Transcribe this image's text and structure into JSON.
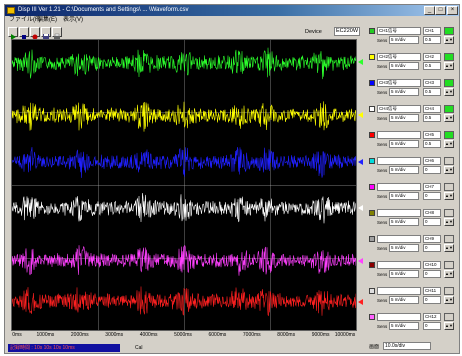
{
  "window": {
    "title": "Disp III Ver 1.21 - C:\\Documents and Settings\\ ... \\Waveform.csv",
    "minimize": "_",
    "maximize": "□",
    "close": "×"
  },
  "menu": [
    "ファイル(F)",
    "編集(E)",
    "表示(V)"
  ],
  "device": {
    "label": "Device",
    "value": "EC220W"
  },
  "x_axis": {
    "ticks": [
      "0ms",
      "1000ms",
      "2000ms",
      "3000ms",
      "4000ms",
      "5000ms",
      "6000ms",
      "7000ms",
      "8000ms",
      "9000ms",
      "10000ms"
    ]
  },
  "status": {
    "left": "記録時間 : 10s 10s 10s 10ms",
    "mid": "Cal"
  },
  "channels": [
    {
      "name": "CH1信号",
      "num": "CH1",
      "sens_label": "Sens",
      "sens": "5 m/div",
      "offset": "0.5",
      "color": "#22cc22",
      "indicator": "#22dd22",
      "trace": "#2cff2c"
    },
    {
      "name": "CH2信号",
      "num": "CH2",
      "sens_label": "Sens",
      "sens": "5 m/div",
      "offset": "0.5",
      "color": "#ffff00",
      "indicator": "#22dd22",
      "trace": "#ffff00"
    },
    {
      "name": "CH3信号",
      "num": "CH3",
      "sens_label": "Sens",
      "sens": "5 m/div",
      "offset": "0.5",
      "color": "#0000ff",
      "indicator": "#22dd22",
      "trace": "#2020ff"
    },
    {
      "name": "CH4信号",
      "num": "CH4",
      "sens_label": "Sens",
      "sens": "5 m/div",
      "offset": "0.5",
      "color": "#ffffff",
      "indicator": "#22dd22",
      "trace": "#ffffff"
    },
    {
      "name": "",
      "num": "CH5",
      "sens_label": "Sens",
      "sens": "5 m/div",
      "offset": "0.5",
      "color": "#ff0000",
      "indicator": "#22dd22",
      "trace": "#ff2020"
    },
    {
      "name": "",
      "num": "CH6",
      "sens_label": "Sens",
      "sens": "5 m/div",
      "offset": "0",
      "color": "#00dddd",
      "indicator": "#d4d0c8",
      "trace": "#ff40ff"
    },
    {
      "name": "",
      "num": "CH7",
      "sens_label": "Sens",
      "sens": "5 m/div",
      "offset": "0",
      "color": "#ff00ff",
      "indicator": "#d4d0c8",
      "trace": "#ff40ff"
    },
    {
      "name": "",
      "num": "CH8",
      "sens_label": "Sens",
      "sens": "5 m/div",
      "offset": "0",
      "color": "#808000",
      "indicator": "#d4d0c8",
      "trace": "#ff40ff"
    },
    {
      "name": "",
      "num": "CH9",
      "sens_label": "Sens",
      "sens": "5 m/div",
      "offset": "0",
      "color": "#a0a0a0",
      "indicator": "#d4d0c8",
      "trace": "#ff40ff"
    },
    {
      "name": "",
      "num": "CH10",
      "sens_label": "Sens",
      "sens": "5 m/div",
      "offset": "0",
      "color": "#8b0000",
      "indicator": "#d4d0c8",
      "trace": "#ff40ff"
    },
    {
      "name": "",
      "num": "CH11",
      "sens_label": "Sens",
      "sens": "5 m/div",
      "offset": "0",
      "color": "#e0e0e0",
      "indicator": "#d4d0c8",
      "trace": "#ff40ff"
    },
    {
      "name": "",
      "num": "CH12",
      "sens_label": "Sens",
      "sens": "5 m/div",
      "offset": "0",
      "color": "#ff60ff",
      "indicator": "#d4d0c8",
      "trace": "#ff40ff"
    }
  ],
  "traces": [
    {
      "color": "#2cff2c",
      "level": 0.08
    },
    {
      "color": "#ffff00",
      "level": 0.26
    },
    {
      "color": "#2020ff",
      "level": 0.42
    },
    {
      "color": "#ffffff",
      "level": 0.58
    },
    {
      "color": "#ff40ff",
      "level": 0.76
    },
    {
      "color": "#ff2020",
      "level": 0.9
    }
  ],
  "hposition": {
    "label": "画面",
    "value": "10.0s/div"
  }
}
